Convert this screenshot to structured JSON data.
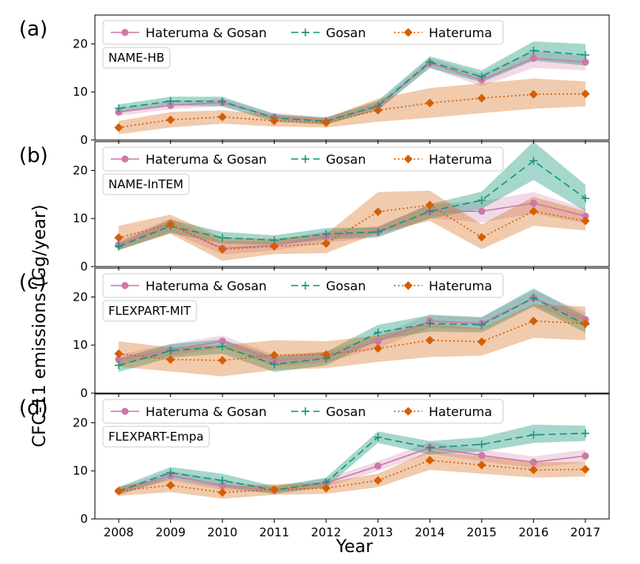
{
  "ylabel": "CFC-11 emissions (Gg/year)",
  "xlabel": "Year",
  "colors": {
    "hg": "#cc79a7",
    "gosan": "#14967a",
    "hateruma": "#d55e00"
  },
  "chart_data": [
    {
      "type": "line",
      "panel_label": "(a)",
      "model": "NAME-HB",
      "x": [
        2008,
        2009,
        2010,
        2011,
        2012,
        2013,
        2014,
        2015,
        2016,
        2017
      ],
      "ylim": [
        0,
        26
      ],
      "yticks": [
        0,
        10,
        20
      ],
      "series": [
        {
          "name": "Hateruma & Gosan",
          "values": [
            5.8,
            7.2,
            7.8,
            4.8,
            4.0,
            7.0,
            16.0,
            12.5,
            17.0,
            16.2
          ],
          "lower": [
            5.0,
            6.4,
            7.0,
            4.2,
            3.4,
            6.2,
            15.0,
            11.2,
            15.0,
            14.5
          ],
          "upper": [
            6.6,
            8.0,
            8.6,
            5.6,
            4.8,
            7.8,
            17.0,
            13.8,
            18.5,
            17.5
          ]
        },
        {
          "name": "Gosan",
          "values": [
            6.6,
            8.1,
            8.0,
            4.6,
            3.9,
            7.1,
            16.2,
            13.2,
            18.6,
            17.7
          ],
          "lower": [
            5.8,
            7.2,
            7.0,
            3.8,
            3.2,
            6.3,
            15.0,
            12.0,
            16.5,
            15.5
          ],
          "upper": [
            7.4,
            9.0,
            9.0,
            5.4,
            4.6,
            8.2,
            17.4,
            14.5,
            20.5,
            20.0
          ]
        },
        {
          "name": "Hateruma",
          "values": [
            2.6,
            4.2,
            4.8,
            4.0,
            3.6,
            6.2,
            7.7,
            8.7,
            9.5,
            9.6
          ],
          "lower": [
            1.2,
            2.6,
            3.4,
            2.8,
            2.6,
            3.8,
            4.6,
            5.6,
            6.5,
            7.0
          ],
          "upper": [
            4.0,
            5.8,
            6.2,
            5.2,
            4.6,
            8.6,
            10.8,
            11.8,
            12.8,
            12.2
          ]
        }
      ]
    },
    {
      "type": "line",
      "panel_label": "(b)",
      "model": "NAME-InTEM",
      "x": [
        2008,
        2009,
        2010,
        2011,
        2012,
        2013,
        2014,
        2015,
        2016,
        2017
      ],
      "ylim": [
        0,
        26
      ],
      "yticks": [
        0,
        10,
        20
      ],
      "series": [
        {
          "name": "Hateruma & Gosan",
          "values": [
            4.5,
            8.6,
            3.8,
            4.4,
            6.2,
            7.2,
            11.5,
            11.5,
            13.2,
            10.5
          ],
          "lower": [
            3.5,
            7.2,
            2.5,
            3.4,
            5.0,
            6.0,
            10.0,
            9.2,
            11.0,
            9.0
          ],
          "upper": [
            5.5,
            10.0,
            5.2,
            5.4,
            7.4,
            8.4,
            13.0,
            13.6,
            15.5,
            12.0
          ]
        },
        {
          "name": "Gosan",
          "values": [
            4.2,
            8.4,
            6.0,
            5.5,
            6.8,
            7.2,
            11.5,
            13.8,
            22.0,
            14.2
          ],
          "lower": [
            3.4,
            7.0,
            4.8,
            4.5,
            5.6,
            6.2,
            10.0,
            12.0,
            18.0,
            11.5
          ],
          "upper": [
            5.0,
            9.8,
            7.2,
            6.5,
            8.0,
            8.2,
            13.0,
            15.6,
            26.0,
            17.0
          ]
        },
        {
          "name": "Hateruma",
          "values": [
            6.0,
            8.8,
            3.6,
            4.2,
            4.8,
            11.4,
            12.8,
            6.1,
            11.5,
            9.5
          ],
          "lower": [
            3.5,
            6.8,
            1.2,
            2.6,
            2.8,
            7.0,
            9.5,
            3.6,
            8.5,
            7.5
          ],
          "upper": [
            8.5,
            10.8,
            6.0,
            5.8,
            6.8,
            15.5,
            15.8,
            8.8,
            14.5,
            11.5
          ]
        }
      ]
    },
    {
      "type": "line",
      "panel_label": "(c)",
      "model": "FLEXPART-MIT",
      "x": [
        2008,
        2009,
        2010,
        2011,
        2012,
        2013,
        2014,
        2015,
        2016,
        2017
      ],
      "ylim": [
        0,
        26
      ],
      "yticks": [
        0,
        10,
        20
      ],
      "series": [
        {
          "name": "Hateruma & Gosan",
          "values": [
            7.0,
            9.0,
            10.8,
            6.8,
            7.5,
            10.8,
            15.0,
            14.5,
            19.8,
            15.3
          ],
          "lower": [
            6.0,
            7.8,
            9.4,
            5.6,
            6.4,
            9.4,
            13.6,
            13.2,
            18.2,
            13.8
          ],
          "upper": [
            8.0,
            10.2,
            12.0,
            8.0,
            8.6,
            12.0,
            16.4,
            15.8,
            21.4,
            16.8
          ]
        },
        {
          "name": "Gosan",
          "values": [
            5.8,
            8.8,
            9.7,
            6.0,
            7.2,
            12.6,
            14.5,
            14.2,
            19.8,
            14.3
          ],
          "lower": [
            4.4,
            7.4,
            8.2,
            4.4,
            5.8,
            11.0,
            12.8,
            12.6,
            18.0,
            12.6
          ],
          "upper": [
            7.2,
            10.2,
            11.2,
            7.6,
            8.6,
            14.2,
            16.2,
            15.8,
            21.8,
            16.0
          ]
        },
        {
          "name": "Hateruma",
          "values": [
            8.2,
            7.0,
            6.8,
            7.9,
            8.0,
            9.3,
            11.0,
            10.7,
            15.0,
            14.5
          ],
          "lower": [
            5.5,
            4.5,
            3.5,
            4.8,
            5.2,
            6.5,
            7.5,
            7.8,
            11.5,
            11.0
          ],
          "upper": [
            10.8,
            9.5,
            10.0,
            11.0,
            10.8,
            12.0,
            14.5,
            13.5,
            18.5,
            18.0
          ]
        }
      ]
    },
    {
      "type": "line",
      "panel_label": "(d)",
      "model": "FLEXPART-Empa",
      "x": [
        2008,
        2009,
        2010,
        2011,
        2012,
        2013,
        2014,
        2015,
        2016,
        2017
      ],
      "ylim": [
        0,
        26
      ],
      "yticks": [
        0,
        10,
        20
      ],
      "series": [
        {
          "name": "Hateruma & Gosan",
          "values": [
            5.8,
            9.0,
            7.0,
            6.0,
            7.5,
            11.0,
            14.8,
            13.2,
            11.8,
            13.1
          ],
          "lower": [
            5.2,
            8.0,
            6.0,
            5.4,
            6.6,
            10.0,
            13.6,
            12.0,
            10.6,
            11.8
          ],
          "upper": [
            6.4,
            10.0,
            8.0,
            6.6,
            8.4,
            12.0,
            16.0,
            14.4,
            13.0,
            14.4
          ]
        },
        {
          "name": "Gosan",
          "values": [
            5.8,
            9.6,
            8.0,
            6.0,
            7.6,
            17.0,
            14.8,
            15.5,
            17.5,
            17.8
          ],
          "lower": [
            5.0,
            8.4,
            6.6,
            5.2,
            6.6,
            15.8,
            13.4,
            14.0,
            15.8,
            16.2
          ],
          "upper": [
            6.6,
            10.8,
            9.4,
            6.8,
            8.6,
            18.2,
            16.2,
            17.0,
            19.6,
            19.4
          ]
        },
        {
          "name": "Hateruma",
          "values": [
            5.8,
            7.0,
            5.5,
            6.1,
            6.4,
            8.0,
            12.2,
            11.2,
            10.2,
            10.3
          ],
          "lower": [
            4.8,
            5.6,
            4.2,
            5.0,
            5.2,
            6.6,
            10.2,
            9.4,
            8.6,
            8.8
          ],
          "upper": [
            6.8,
            8.4,
            6.8,
            7.2,
            7.6,
            9.4,
            14.2,
            13.0,
            11.8,
            11.8
          ]
        }
      ]
    }
  ]
}
